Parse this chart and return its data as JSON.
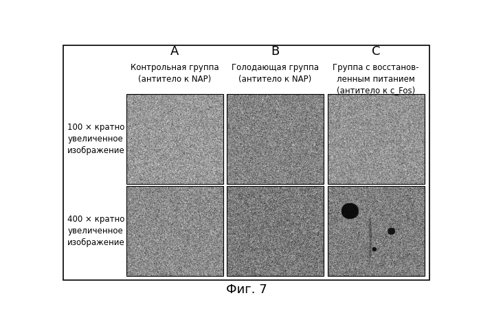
{
  "title": "Фиг. 7",
  "title_fontsize": 13,
  "col_labels": [
    "A",
    "B",
    "C"
  ],
  "col_sublabels": [
    "Контрольная группа\n(антитело к NAP)",
    "Голодающая группа\n(антитело к NAP)",
    "Группа с восстанов-\nленным питанием\n(антитело к с_Fos)"
  ],
  "row_labels": [
    "100 × кратно\nувеличенное\nизображение",
    "400 × кратно\nувеличенное\nизображение"
  ],
  "background_color": "#ffffff",
  "panel_border_color": "#000000",
  "figure_border_color": "#000000",
  "label_fontsize": 13,
  "sublabel_fontsize": 8.5,
  "row_label_fontsize": 8.5
}
